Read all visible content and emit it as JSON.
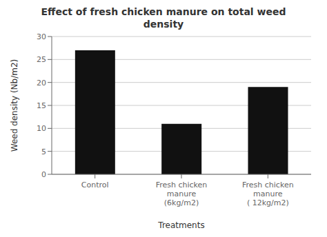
{
  "chart_data": {
    "type": "bar",
    "title": "Effect of fresh chicken manure on total weed\ndensity",
    "xlabel": "Treatments",
    "ylabel": "Weed density (Nb/m2)",
    "categories": [
      "Control",
      "Fresh chicken\nmanure\n(6kg/m2)",
      "Fresh chicken\nmanure\n( 12kg/m2)"
    ],
    "values": [
      27,
      11,
      19
    ],
    "color": "#111111",
    "ylim": [
      0,
      30
    ],
    "yticks": [
      0,
      5,
      10,
      15,
      20,
      25,
      30
    ],
    "grid": true
  }
}
